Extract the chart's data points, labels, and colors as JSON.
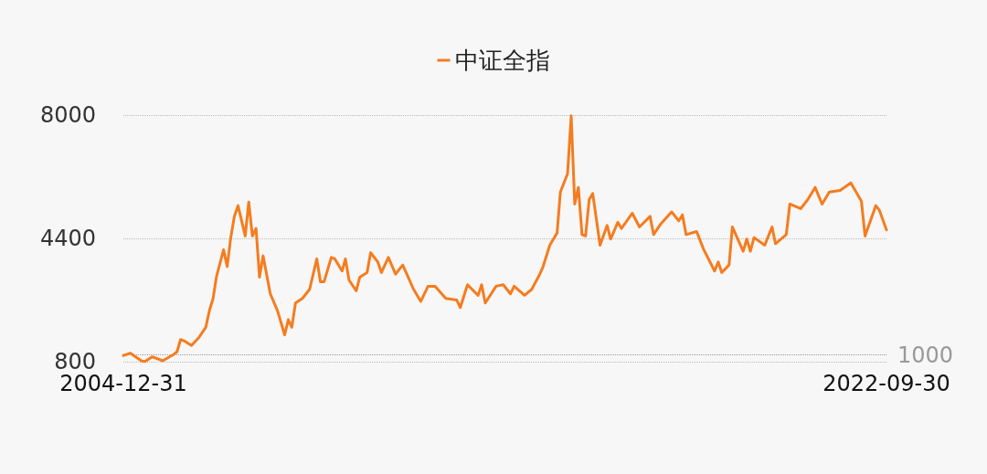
{
  "chart_data": {
    "type": "line",
    "legend": "top",
    "grid": "y",
    "marker": "none",
    "line_style": "solid",
    "xlim": [
      "2004-12-31",
      "2022-09-30"
    ],
    "xticks": [
      "2004-12-31",
      "2022-09-30"
    ],
    "ylim": [
      800,
      8000
    ],
    "yticks": [
      800,
      4400,
      8000
    ],
    "ref_lines": [
      {
        "axis": "y",
        "value": 1000,
        "label": "1000",
        "color": "#999999",
        "line_style": "dotted"
      }
    ],
    "x": [
      "2004-12-31",
      "2005-03",
      "2005-06",
      "2005-07",
      "2005-09",
      "2005-12",
      "2006-03",
      "2006-04",
      "2006-05",
      "2006-06",
      "2006-08",
      "2006-10",
      "2006-12",
      "2007-01",
      "2007-02",
      "2007-03",
      "2007-05",
      "2007-06",
      "2007-07",
      "2007-08",
      "2007-09",
      "2007-11",
      "2007-12",
      "2008-01",
      "2008-02",
      "2008-03",
      "2008-04",
      "2008-06",
      "2008-08",
      "2008-10",
      "2008-11",
      "2008-12",
      "2009-01",
      "2009-03",
      "2009-05",
      "2009-07",
      "2009-08",
      "2009-09",
      "2009-11",
      "2009-12",
      "2010-02",
      "2010-03",
      "2010-04",
      "2010-06",
      "2010-07",
      "2010-09",
      "2010-10",
      "2010-12",
      "2011-01",
      "2011-03",
      "2011-05",
      "2011-07",
      "2011-10",
      "2011-12",
      "2012-02",
      "2012-04",
      "2012-07",
      "2012-10",
      "2012-11",
      "2013-01",
      "2013-04",
      "2013-05",
      "2013-06",
      "2013-09",
      "2013-11",
      "2014-01",
      "2014-02",
      "2014-05",
      "2014-07",
      "2014-09",
      "2014-10",
      "2014-12",
      "2015-01",
      "2015-02",
      "2015-03",
      "2015-05",
      "2015-06",
      "2015-07",
      "2015-08",
      "2015-09",
      "2015-10",
      "2015-11",
      "2015-12",
      "2016-02",
      "2016-04",
      "2016-05",
      "2016-07",
      "2016-08",
      "2016-11",
      "2017-01",
      "2017-04",
      "2017-05",
      "2017-07",
      "2017-10",
      "2017-12",
      "2018-01",
      "2018-02",
      "2018-05",
      "2018-07",
      "2018-10",
      "2018-11",
      "2018-12",
      "2019-02",
      "2019-03",
      "2019-06",
      "2019-07",
      "2019-08",
      "2019-09",
      "2019-12",
      "2020-02",
      "2020-03",
      "2020-06",
      "2020-07",
      "2020-10",
      "2020-12",
      "2021-02",
      "2021-04",
      "2021-06",
      "2021-09",
      "2021-12",
      "2022-03",
      "2022-04",
      "2022-07",
      "2022-08",
      "2022-09-30"
    ],
    "series": [
      {
        "name": "中证全指",
        "color": "#f57c1f",
        "values": [
          979,
          1048,
          827,
          800,
          941,
          827,
          1005,
          1093,
          1447,
          1405,
          1272,
          1493,
          1804,
          2292,
          2646,
          3269,
          4069,
          3578,
          4423,
          5044,
          5356,
          4468,
          5462,
          4468,
          4690,
          3269,
          3890,
          2780,
          2292,
          1580,
          2025,
          1804,
          2513,
          2646,
          2913,
          3801,
          3135,
          3135,
          3845,
          3801,
          3446,
          3801,
          3180,
          2869,
          3269,
          3402,
          3979,
          3712,
          3402,
          3845,
          3357,
          3624,
          2913,
          2558,
          3003,
          3003,
          2646,
          2602,
          2380,
          3047,
          2736,
          3047,
          2513,
          3003,
          3047,
          2780,
          3003,
          2736,
          2913,
          3313,
          3535,
          4201,
          4379,
          4557,
          5755,
          6288,
          7980,
          5401,
          5889,
          4511,
          4468,
          5534,
          5711,
          4201,
          4778,
          4379,
          4868,
          4690,
          5134,
          4734,
          5044,
          4511,
          4823,
          5174,
          4911,
          5089,
          4511,
          4601,
          4069,
          3446,
          3712,
          3402,
          3624,
          4734,
          4024,
          4379,
          4024,
          4423,
          4201,
          4734,
          4246,
          4511,
          5401,
          5268,
          5534,
          5889,
          5401,
          5755,
          5800,
          6022,
          5489,
          4468,
          5356,
          5222,
          4645
        ]
      }
    ]
  }
}
